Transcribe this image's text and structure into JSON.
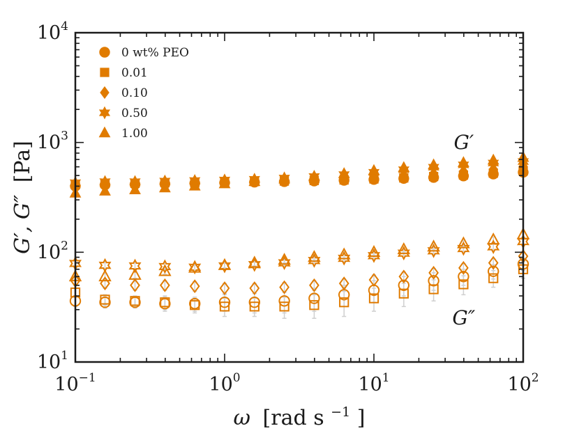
{
  "chart_data": {
    "type": "scatter",
    "xscale": "log",
    "yscale": "log",
    "xlim": [
      0.1,
      100
    ],
    "ylim": [
      10,
      10000
    ],
    "xlabel_parts": {
      "symbol": "ω",
      "unit": "[rad s",
      "unit_exp": "−1",
      "unit_close": "]"
    },
    "ylabel_parts": {
      "symbol": "G′, G″",
      "unit": "[Pa]"
    },
    "x_ticks": [
      {
        "base": "10",
        "exp": "−1",
        "value": 0.1
      },
      {
        "base": "10",
        "exp": "0",
        "value": 1
      },
      {
        "base": "10",
        "exp": "1",
        "value": 10
      },
      {
        "base": "10",
        "exp": "2",
        "value": 100
      }
    ],
    "y_ticks": [
      {
        "base": "10",
        "exp": "1",
        "value": 10
      },
      {
        "base": "10",
        "exp": "2",
        "value": 100
      },
      {
        "base": "10",
        "exp": "3",
        "value": 1000
      },
      {
        "base": "10",
        "exp": "4",
        "value": 10000
      }
    ],
    "annotations": [
      {
        "text": "G′",
        "x": 40,
        "y": 870
      },
      {
        "text": "G″",
        "x": 40,
        "y": 22
      }
    ],
    "legend_placement": "top-left",
    "color": "#E07B00",
    "error_color": "#cfcfcf",
    "grid": false,
    "x": [
      0.1,
      0.158,
      0.251,
      0.398,
      0.631,
      1.0,
      1.585,
      2.512,
      3.981,
      6.31,
      10.0,
      15.85,
      25.12,
      39.81,
      63.1,
      100.0
    ],
    "series": [
      {
        "name": "0 wt% PEO",
        "marker": "circle",
        "G_storage": [
          400,
          410,
          415,
          420,
          425,
          430,
          435,
          440,
          445,
          452,
          460,
          470,
          480,
          495,
          515,
          535
        ],
        "G_loss": [
          36,
          35,
          35,
          34,
          34,
          35,
          35,
          36,
          38,
          41,
          45,
          50,
          55,
          60,
          67,
          78
        ],
        "G_loss_err": [
          4,
          4,
          4,
          5,
          5,
          6,
          7,
          8,
          9,
          9,
          10,
          10,
          10,
          10,
          10,
          10
        ]
      },
      {
        "name": "0.01",
        "marker": "square",
        "G_storage": [
          415,
          425,
          425,
          430,
          430,
          435,
          440,
          445,
          450,
          455,
          465,
          475,
          490,
          505,
          525,
          550
        ],
        "G_loss": [
          43,
          37,
          36,
          35,
          33,
          32,
          32,
          32,
          33,
          35,
          38,
          42,
          46,
          51,
          58,
          70
        ],
        "G_loss_err": [
          4,
          4,
          4,
          5,
          5,
          6,
          6,
          7,
          8,
          9,
          9,
          10,
          10,
          10,
          10,
          12
        ]
      },
      {
        "name": "0.10",
        "marker": "diamond",
        "G_storage": [
          420,
          430,
          430,
          435,
          440,
          445,
          450,
          458,
          465,
          475,
          485,
          500,
          520,
          545,
          570,
          605
        ],
        "G_loss": [
          55,
          52,
          50,
          50,
          49,
          47,
          47,
          48,
          50,
          52,
          56,
          60,
          65,
          72,
          80,
          92
        ],
        "G_loss_err": [
          5,
          5,
          5,
          5,
          5,
          5,
          5,
          5,
          5,
          5,
          6,
          6,
          6,
          7,
          7,
          8
        ]
      },
      {
        "name": "0.50",
        "marker": "hexagram",
        "G_storage": [
          430,
          440,
          440,
          445,
          450,
          455,
          462,
          475,
          490,
          510,
          535,
          565,
          595,
          625,
          650,
          670
        ],
        "G_loss": [
          79,
          76,
          75,
          74,
          73,
          75,
          77,
          80,
          84,
          88,
          93,
          98,
          103,
          108,
          112,
          125
        ],
        "G_loss_err": [
          5,
          5,
          5,
          5,
          5,
          5,
          5,
          5,
          5,
          6,
          6,
          6,
          7,
          7,
          8,
          9
        ]
      },
      {
        "name": "1.00",
        "marker": "triangle",
        "G_storage": [
          345,
          360,
          370,
          385,
          400,
          420,
          440,
          465,
          490,
          520,
          555,
          590,
          625,
          655,
          690,
          730
        ],
        "G_loss": [
          60,
          60,
          62,
          67,
          72,
          76,
          80,
          85,
          90,
          95,
          100,
          106,
          112,
          120,
          130,
          145
        ],
        "G_loss_err": [
          4,
          4,
          4,
          4,
          4,
          4,
          5,
          5,
          5,
          6,
          6,
          6,
          7,
          7,
          8,
          9
        ]
      }
    ]
  }
}
